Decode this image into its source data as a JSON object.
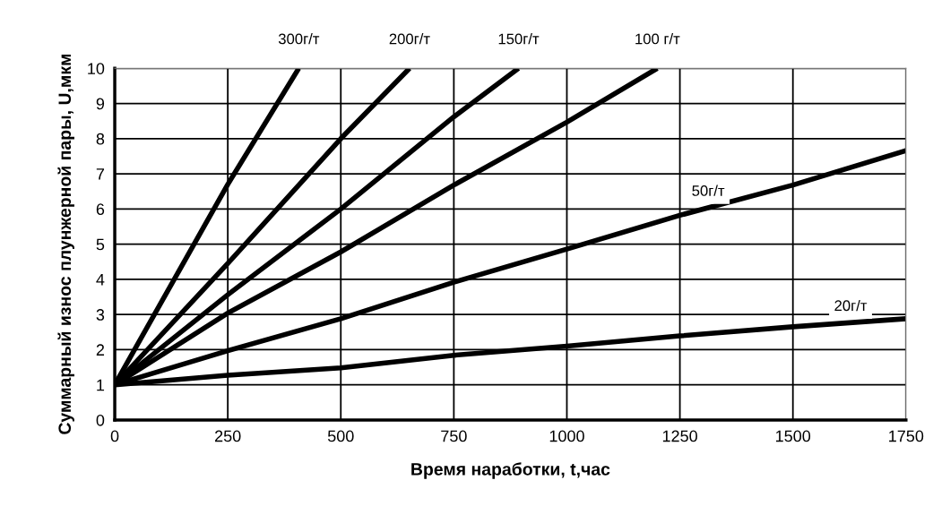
{
  "chart_data": {
    "type": "line",
    "xlabel": "Время наработки, t,час",
    "ylabel": "Суммарный износ плунжерной пары, U,мкм",
    "xlim": [
      0,
      1750
    ],
    "ylim": [
      0,
      10
    ],
    "xticks": [
      0,
      250,
      500,
      750,
      1000,
      1250,
      1500,
      1750
    ],
    "yticks": [
      0,
      1,
      2,
      3,
      4,
      5,
      6,
      7,
      8,
      9,
      10
    ],
    "grid": true,
    "marker": "none",
    "line_style": "solid",
    "series": [
      {
        "name": "300г/т",
        "color": "#000000",
        "x": [
          0,
          250,
          407
        ],
        "values": [
          1,
          6.7,
          10
        ]
      },
      {
        "name": "200г/т",
        "color": "#000000",
        "x": [
          0,
          250,
          500,
          652
        ],
        "values": [
          1,
          4.45,
          8,
          10
        ]
      },
      {
        "name": "150г/т",
        "color": "#000000",
        "x": [
          0,
          250,
          500,
          750,
          893
        ],
        "values": [
          1,
          3.56,
          6.0,
          8.62,
          10
        ]
      },
      {
        "name": "100 г/т",
        "color": "#000000",
        "x": [
          0,
          250,
          500,
          750,
          1000,
          1200
        ],
        "values": [
          1,
          3.04,
          4.78,
          6.68,
          8.47,
          10
        ]
      },
      {
        "name": "50г/т",
        "color": "#000000",
        "x": [
          0,
          250,
          500,
          750,
          1000,
          1250,
          1500,
          1750
        ],
        "values": [
          1,
          1.97,
          2.88,
          3.92,
          4.86,
          5.82,
          6.68,
          7.66
        ]
      },
      {
        "name": "20г/т",
        "color": "#000000",
        "x": [
          0,
          250,
          500,
          750,
          1000,
          1250,
          1500,
          1750
        ],
        "values": [
          1,
          1.27,
          1.48,
          1.84,
          2.1,
          2.39,
          2.65,
          2.88
        ]
      }
    ]
  }
}
